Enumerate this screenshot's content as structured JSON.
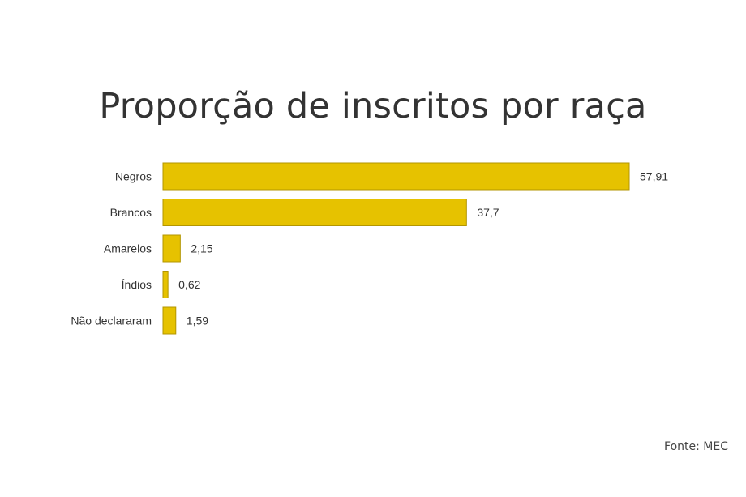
{
  "chart_data": {
    "type": "bar",
    "orientation": "horizontal",
    "title": "Proporção de inscritos por raça",
    "categories": [
      "Negros",
      "Brancos",
      "Amarelos",
      "Índios",
      "Não declararam"
    ],
    "values": [
      57.91,
      37.7,
      2.15,
      0.62,
      1.59
    ],
    "value_labels": [
      "57,91",
      "37,7",
      "2,15",
      "0,62",
      "1,59"
    ],
    "xlim": [
      0,
      57.91
    ],
    "grid": false,
    "bar_color": "#e6c200",
    "bar_stroke": "#b39600",
    "source": "Fonte: MEC"
  }
}
